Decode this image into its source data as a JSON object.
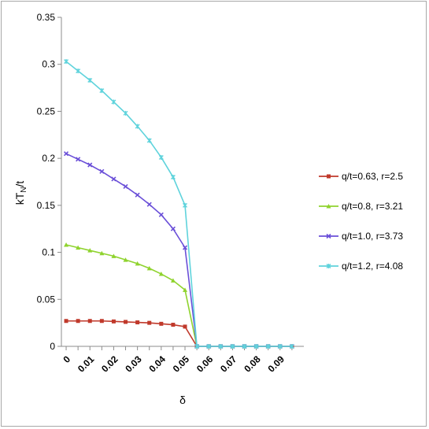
{
  "chart_data": {
    "type": "line",
    "title": "",
    "xlabel": "δ",
    "ylabel_base": "kT",
    "ylabel_sub": "N",
    "ylabel_tail": "/t",
    "x": [
      0,
      0.005,
      0.01,
      0.015,
      0.02,
      0.025,
      0.03,
      0.035,
      0.04,
      0.045,
      0.05,
      0.055,
      0.06,
      0.065,
      0.07,
      0.075,
      0.08,
      0.085,
      0.09,
      0.095
    ],
    "xticks": [
      0,
      0.01,
      0.02,
      0.03,
      0.04,
      0.05,
      0.06,
      0.07,
      0.08,
      0.09
    ],
    "xtick_labels": [
      "0",
      "0.01",
      "0.02",
      "0.03",
      "0.04",
      "0.05",
      "0.06",
      "0.07",
      "0.08",
      "0.09"
    ],
    "xlim": [
      -0.002,
      0.1
    ],
    "ylim": [
      0,
      0.35
    ],
    "yticks": [
      0,
      0.05,
      0.1,
      0.15,
      0.2,
      0.25,
      0.3,
      0.35
    ],
    "ytick_labels": [
      "0",
      "0.05",
      "0.1",
      "0.15",
      "0.2",
      "0.25",
      "0.3",
      "0.35"
    ],
    "grid": false,
    "legend_position": "right",
    "series": [
      {
        "name": "q/t=0.63, r=2.5",
        "color": "#c0392b",
        "marker": "square",
        "values": [
          0.027,
          0.027,
          0.027,
          0.027,
          0.0265,
          0.026,
          0.0255,
          0.025,
          0.024,
          0.023,
          0.021,
          0.0,
          0,
          0,
          0,
          0,
          0,
          0,
          0,
          0
        ]
      },
      {
        "name": "q/t=0.8, r=3.21",
        "color": "#8fd32e",
        "marker": "triangle",
        "values": [
          0.108,
          0.105,
          0.102,
          0.099,
          0.096,
          0.092,
          0.088,
          0.083,
          0.077,
          0.07,
          0.06,
          0.0,
          0,
          0,
          0,
          0,
          0,
          0,
          0,
          0
        ]
      },
      {
        "name": "q/t=1.0, r=3.73",
        "color": "#6a4fd8",
        "marker": "x",
        "values": [
          0.205,
          0.199,
          0.193,
          0.186,
          0.178,
          0.17,
          0.161,
          0.151,
          0.14,
          0.125,
          0.105,
          0.0,
          0,
          0,
          0,
          0,
          0,
          0,
          0,
          0
        ]
      },
      {
        "name": "q/t=1.2, r=4.08",
        "color": "#5fd3dc",
        "marker": "star",
        "values": [
          0.303,
          0.293,
          0.283,
          0.272,
          0.26,
          0.248,
          0.234,
          0.219,
          0.201,
          0.18,
          0.15,
          0.0,
          0,
          0,
          0,
          0,
          0,
          0,
          0,
          0
        ]
      }
    ]
  }
}
